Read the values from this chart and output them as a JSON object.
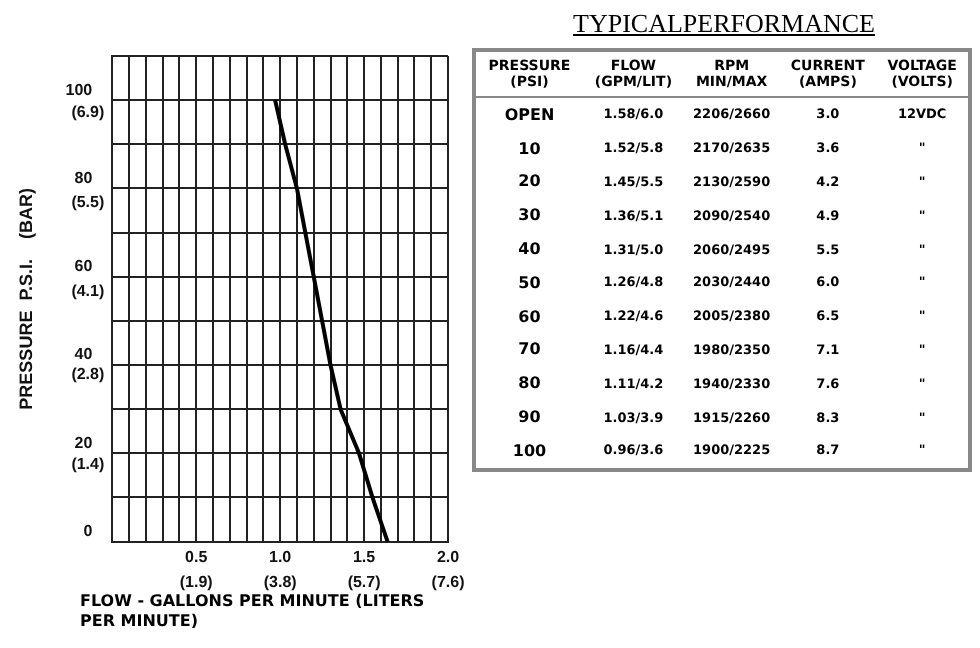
{
  "chart_data": [
    {
      "type": "line",
      "xlabel": "FLOW - GALLONS PER MINUTE  (LITERS PER MINUTE)",
      "ylabel": "PRESSURE  P.S.I.    (BAR)",
      "x": [
        0.97,
        1.03,
        1.1,
        1.15,
        1.2,
        1.25,
        1.3,
        1.36,
        1.47,
        1.55,
        1.64
      ],
      "series": [
        {
          "color": "#000000",
          "values": [
            100,
            90,
            80,
            70,
            60,
            50,
            40,
            30,
            20,
            10,
            0
          ]
        }
      ],
      "xlim": [
        0,
        2
      ],
      "ylim": [
        0,
        110
      ],
      "xticks": [
        {
          "value": 0,
          "label": null
        },
        {
          "value": 0.1,
          "label": null
        },
        {
          "value": 0.2,
          "label": null
        },
        {
          "value": 0.3,
          "label": null
        },
        {
          "value": 0.4,
          "label": null
        },
        0.5,
        {
          "value": 0.6,
          "label": null
        },
        {
          "value": 0.7,
          "label": null
        },
        {
          "value": 0.8,
          "label": null
        },
        {
          "value": 0.9,
          "label": null
        },
        {
          "value": 1,
          "label": "1.0"
        },
        {
          "value": 1.1,
          "label": null
        },
        {
          "value": 1.2,
          "label": null
        },
        {
          "value": 1.3,
          "label": null
        },
        {
          "value": 1.4,
          "label": null
        },
        1.5,
        {
          "value": 1.6,
          "label": null
        },
        {
          "value": 1.7,
          "label": null
        },
        {
          "value": 1.8,
          "label": null
        },
        {
          "value": 1.9,
          "label": null
        },
        {
          "value": 2,
          "label": "2.0"
        }
      ],
      "yticks": [
        0,
        {
          "value": 10,
          "label": null
        },
        20,
        {
          "value": 30,
          "label": null
        },
        40,
        {
          "value": 50,
          "label": null
        },
        60,
        {
          "value": 70,
          "label": null
        },
        80,
        {
          "value": 90,
          "label": null
        },
        100,
        {
          "value": 110,
          "label": null
        }
      ],
      "x2lim": [
        0,
        7.6
      ],
      "x2ticks": [
        {
          "value": 1.9,
          "label": "(1.9)"
        },
        {
          "value": 3.8,
          "label": "(3.8)"
        },
        {
          "value": 5.7,
          "label": "(5.7)"
        },
        {
          "value": 7.6,
          "label": "(7.6)"
        }
      ],
      "y2lim": [
        0,
        7.6
      ],
      "y2ticks": [
        {
          "value": 1.4,
          "label": "(1.4)"
        },
        {
          "value": 2.8,
          "label": "(2.8)"
        },
        {
          "value": 4.1,
          "label": "(4.1)"
        },
        {
          "value": 5.5,
          "label": "(5.5)"
        },
        {
          "value": 6.9,
          "label": "(6.9)"
        }
      ],
      "grid": true,
      "marker": "none",
      "line_style": "solid",
      "legend": false
    },
    {
      "type": "other",
      "title": "TYPICALPERFORMANCE",
      "categories": [
        "PRESSURE\n(PSI)",
        "FLOW\n(GPM/LIT)",
        "RPM\nMIN/MAX",
        "CURRENT\n(AMPS)",
        "VOLTAGE\n(VOLTS)"
      ],
      "cell_labels": [
        [
          "OPEN",
          "1.58/6.0",
          "2206/2660",
          "3.0",
          "12VDC"
        ],
        [
          "10",
          "1.52/5.8",
          "2170/2635",
          "3.6",
          "\""
        ],
        [
          "20",
          "1.45/5.5",
          "2130/2590",
          "4.2",
          "\""
        ],
        [
          "30",
          "1.36/5.1",
          "2090/2540",
          "4.9",
          "\""
        ],
        [
          "40",
          "1.31/5.0",
          "2060/2495",
          "5.5",
          "\""
        ],
        [
          "50",
          "1.26/4.8",
          "2030/2440",
          "6.0",
          "\""
        ],
        [
          "60",
          "1.22/4.6",
          "2005/2380",
          "6.5",
          "\""
        ],
        [
          "70",
          "1.16/4.4",
          "1980/2350",
          "7.1",
          "\""
        ],
        [
          "80",
          "1.11/4.2",
          "1940/2330",
          "7.6",
          "\""
        ],
        [
          "90",
          "1.03/3.9",
          "1915/2260",
          "8.3",
          "\""
        ],
        [
          "100",
          "0.96/3.6",
          "1900/2225",
          "8.7",
          "\""
        ]
      ]
    }
  ]
}
